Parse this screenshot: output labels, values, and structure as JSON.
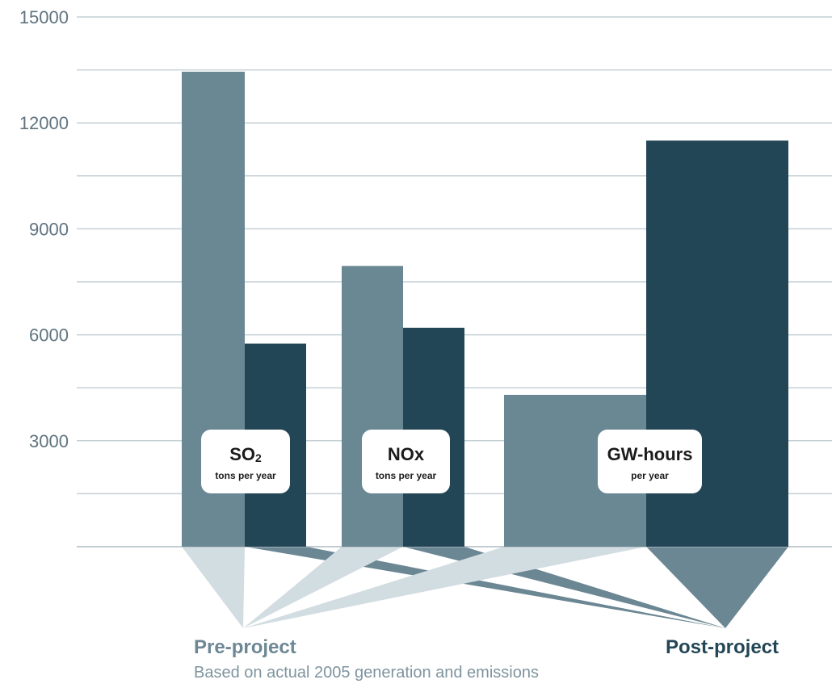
{
  "chart_data": {
    "type": "bar",
    "yticks": [
      "3000",
      "6000",
      "9000",
      "12000",
      "15000"
    ],
    "ylim": [
      0,
      15000
    ],
    "grid": true,
    "colors": {
      "pre": "#6a8893",
      "post": "#234656",
      "pre_funnel": "#d2dde2",
      "post_funnel": "#6c8794"
    },
    "groups": [
      {
        "label": "SO",
        "label_subscript": "2",
        "sublabel": "tons per year",
        "pre": 13450,
        "post": 5750
      },
      {
        "label": "NOx",
        "sublabel": "tons per year",
        "pre": 7950,
        "post": 6200
      },
      {
        "label": "GW-hours",
        "sublabel": "per year",
        "pre": 4300,
        "post": 11500
      }
    ]
  },
  "footer": {
    "pre_label": "Pre-project",
    "post_label": "Post-project",
    "note": "Based on actual 2005 generation and emissions"
  }
}
